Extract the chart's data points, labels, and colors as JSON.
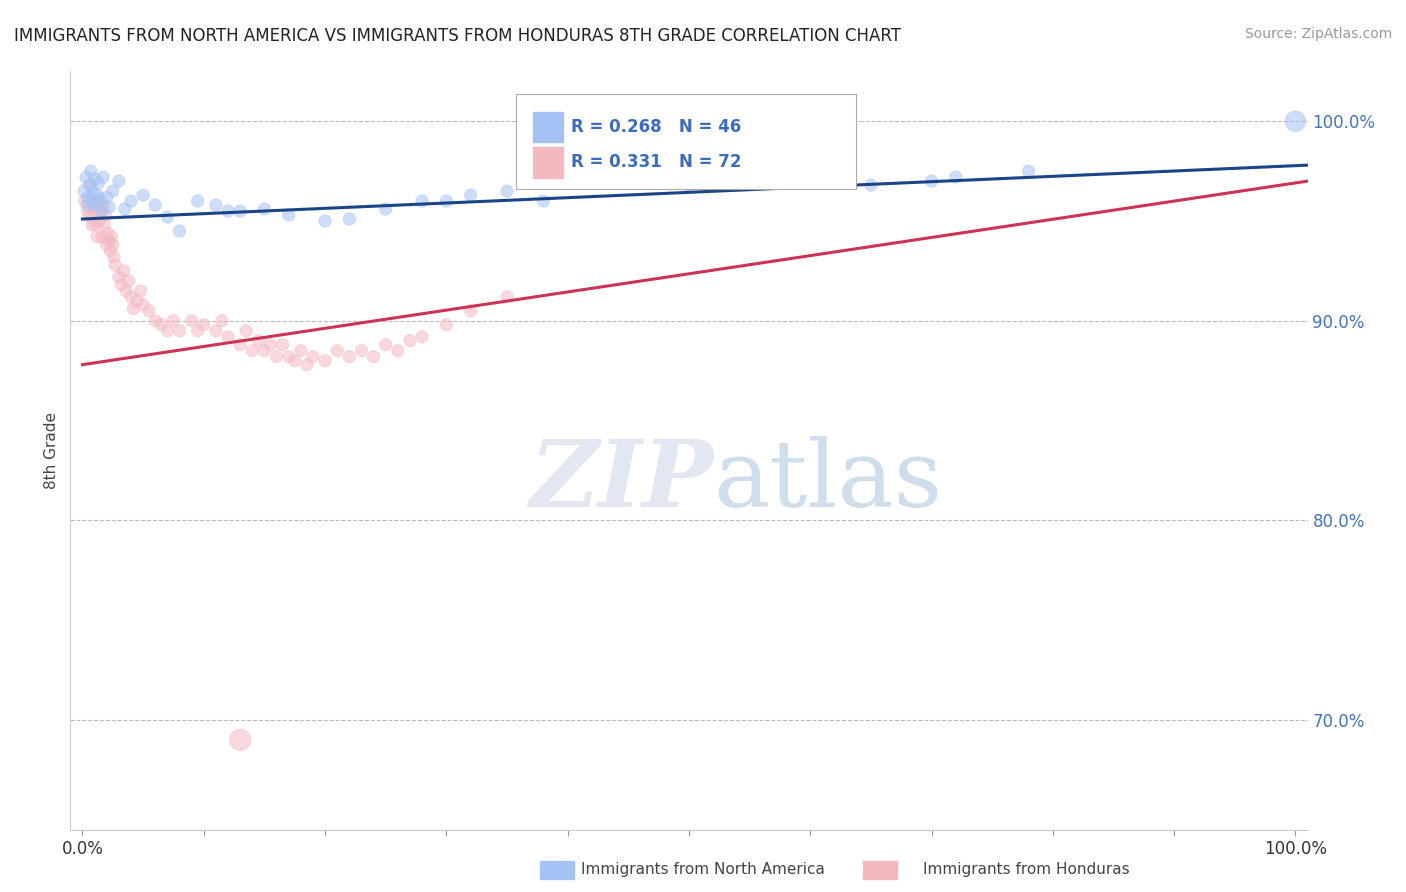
{
  "title": "IMMIGRANTS FROM NORTH AMERICA VS IMMIGRANTS FROM HONDURAS 8TH GRADE CORRELATION CHART",
  "source": "Source: ZipAtlas.com",
  "ylabel": "8th Grade",
  "xlim": [
    -0.01,
    1.01
  ],
  "ylim": [
    0.645,
    1.025
  ],
  "blue_R": 0.268,
  "blue_N": 46,
  "pink_R": 0.331,
  "pink_N": 72,
  "blue_color": "#a4c2f4",
  "pink_color": "#f4b8c1",
  "blue_line_color": "#1c4587",
  "pink_line_color": "#cc3355",
  "legend_label_blue": "Immigrants from North America",
  "legend_label_pink": "Immigrants from Honduras",
  "watermark_zip": "ZIP",
  "watermark_atlas": "atlas",
  "blue_trendline_x": [
    0.0,
    1.01
  ],
  "blue_trendline_y": [
    0.951,
    0.978
  ],
  "pink_trendline_x": [
    0.0,
    1.01
  ],
  "pink_trendline_y": [
    0.878,
    0.97
  ],
  "blue_scatter_x": [
    0.002,
    0.003,
    0.004,
    0.005,
    0.006,
    0.007,
    0.008,
    0.009,
    0.01,
    0.011,
    0.012,
    0.013,
    0.015,
    0.016,
    0.017,
    0.02,
    0.022,
    0.025,
    0.03,
    0.035,
    0.04,
    0.05,
    0.06,
    0.07,
    0.08,
    0.095,
    0.11,
    0.12,
    0.13,
    0.15,
    0.17,
    0.2,
    0.22,
    0.25,
    0.28,
    0.3,
    0.32,
    0.35,
    0.38,
    0.5,
    0.55,
    0.65,
    0.7,
    0.72,
    0.78,
    1.0
  ],
  "blue_scatter_y": [
    0.965,
    0.972,
    0.958,
    0.962,
    0.968,
    0.975,
    0.96,
    0.964,
    0.971,
    0.958,
    0.963,
    0.969,
    0.961,
    0.955,
    0.972,
    0.962,
    0.957,
    0.965,
    0.97,
    0.956,
    0.96,
    0.963,
    0.958,
    0.952,
    0.945,
    0.96,
    0.958,
    0.955,
    0.955,
    0.956,
    0.953,
    0.95,
    0.951,
    0.956,
    0.96,
    0.96,
    0.963,
    0.965,
    0.96,
    0.968,
    0.97,
    0.968,
    0.97,
    0.972,
    0.975,
    1.0
  ],
  "blue_scatter_sizes": [
    100,
    80,
    80,
    80,
    80,
    80,
    80,
    80,
    80,
    80,
    80,
    80,
    80,
    80,
    80,
    80,
    80,
    80,
    80,
    80,
    80,
    80,
    80,
    80,
    80,
    80,
    80,
    80,
    80,
    80,
    80,
    80,
    80,
    80,
    80,
    80,
    80,
    80,
    80,
    80,
    80,
    80,
    80,
    80,
    80,
    220
  ],
  "pink_scatter_x": [
    0.002,
    0.004,
    0.006,
    0.007,
    0.008,
    0.009,
    0.01,
    0.011,
    0.012,
    0.013,
    0.014,
    0.015,
    0.016,
    0.017,
    0.018,
    0.019,
    0.02,
    0.021,
    0.022,
    0.023,
    0.024,
    0.025,
    0.026,
    0.027,
    0.03,
    0.032,
    0.034,
    0.036,
    0.038,
    0.04,
    0.042,
    0.045,
    0.048,
    0.05,
    0.055,
    0.06,
    0.065,
    0.07,
    0.075,
    0.08,
    0.09,
    0.095,
    0.1,
    0.11,
    0.115,
    0.12,
    0.13,
    0.135,
    0.14,
    0.145,
    0.15,
    0.155,
    0.16,
    0.165,
    0.17,
    0.175,
    0.18,
    0.185,
    0.19,
    0.2,
    0.21,
    0.22,
    0.23,
    0.24,
    0.25,
    0.26,
    0.27,
    0.28,
    0.3,
    0.32,
    0.35,
    0.13
  ],
  "pink_scatter_y": [
    0.96,
    0.955,
    0.952,
    0.968,
    0.948,
    0.958,
    0.955,
    0.948,
    0.942,
    0.96,
    0.95,
    0.955,
    0.942,
    0.958,
    0.948,
    0.953,
    0.938,
    0.944,
    0.94,
    0.935,
    0.942,
    0.938,
    0.932,
    0.928,
    0.922,
    0.918,
    0.925,
    0.915,
    0.92,
    0.912,
    0.906,
    0.91,
    0.915,
    0.908,
    0.905,
    0.9,
    0.898,
    0.895,
    0.9,
    0.895,
    0.9,
    0.895,
    0.898,
    0.895,
    0.9,
    0.892,
    0.888,
    0.895,
    0.885,
    0.89,
    0.885,
    0.888,
    0.882,
    0.888,
    0.882,
    0.88,
    0.885,
    0.878,
    0.882,
    0.88,
    0.885,
    0.882,
    0.885,
    0.882,
    0.888,
    0.885,
    0.89,
    0.892,
    0.898,
    0.905,
    0.912,
    0.69
  ],
  "pink_scatter_sizes": [
    80,
    80,
    80,
    80,
    80,
    80,
    80,
    80,
    80,
    80,
    80,
    80,
    80,
    80,
    80,
    80,
    80,
    80,
    80,
    80,
    80,
    80,
    80,
    80,
    80,
    80,
    80,
    80,
    80,
    80,
    80,
    80,
    80,
    80,
    80,
    80,
    80,
    80,
    80,
    80,
    80,
    80,
    80,
    80,
    80,
    80,
    80,
    80,
    80,
    80,
    80,
    80,
    80,
    80,
    80,
    80,
    80,
    80,
    80,
    80,
    80,
    80,
    80,
    80,
    80,
    80,
    80,
    80,
    80,
    80,
    80,
    240
  ]
}
